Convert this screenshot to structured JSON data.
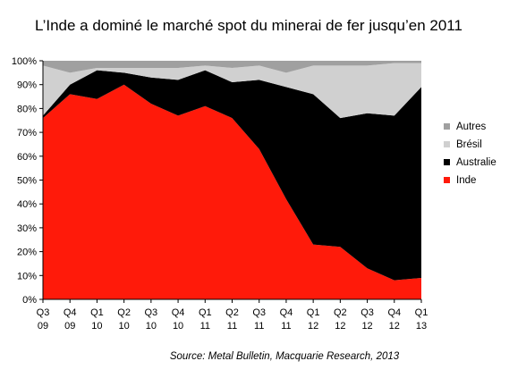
{
  "chart_data": {
    "type": "area",
    "stacked": true,
    "percent": true,
    "title": "L’Inde a dominé le marché spot du minerai de fer jusqu’en 2011",
    "source": "Source: Metal Bulletin, Macquarie Research, 2013",
    "categories": [
      [
        "Q3",
        "09"
      ],
      [
        "Q4",
        "09"
      ],
      [
        "Q1",
        "10"
      ],
      [
        "Q2",
        "10"
      ],
      [
        "Q3",
        "10"
      ],
      [
        "Q4",
        "10"
      ],
      [
        "Q1",
        "11"
      ],
      [
        "Q2",
        "11"
      ],
      [
        "Q3",
        "11"
      ],
      [
        "Q4",
        "11"
      ],
      [
        "Q1",
        "12"
      ],
      [
        "Q2",
        "12"
      ],
      [
        "Q3",
        "12"
      ],
      [
        "Q4",
        "12"
      ],
      [
        "Q1",
        "13"
      ]
    ],
    "ylim": [
      0,
      100
    ],
    "yticks": [
      "0%",
      "10%",
      "20%",
      "30%",
      "40%",
      "50%",
      "60%",
      "70%",
      "80%",
      "90%",
      "100%"
    ],
    "legend_position": "right",
    "series": [
      {
        "name": "Inde",
        "color": "#ff1a0a",
        "values": [
          76,
          86,
          84,
          90,
          82,
          77,
          81,
          76,
          63,
          42,
          23,
          22,
          13,
          8,
          9
        ]
      },
      {
        "name": "Australie",
        "color": "#000000",
        "values": [
          1,
          4,
          12,
          5,
          11,
          15,
          15,
          15,
          29,
          47,
          63,
          54,
          65,
          69,
          80
        ]
      },
      {
        "name": "Brésil",
        "color": "#d0d0d0",
        "values": [
          21,
          5,
          1,
          2,
          4,
          5,
          2,
          6,
          6,
          6,
          12,
          22,
          20,
          22,
          10
        ]
      },
      {
        "name": "Autres",
        "color": "#a0a0a0",
        "values": [
          2,
          5,
          3,
          3,
          3,
          3,
          2,
          3,
          2,
          5,
          2,
          2,
          2,
          1,
          1
        ]
      }
    ],
    "legend_order": [
      "Autres",
      "Brésil",
      "Australie",
      "Inde"
    ]
  }
}
